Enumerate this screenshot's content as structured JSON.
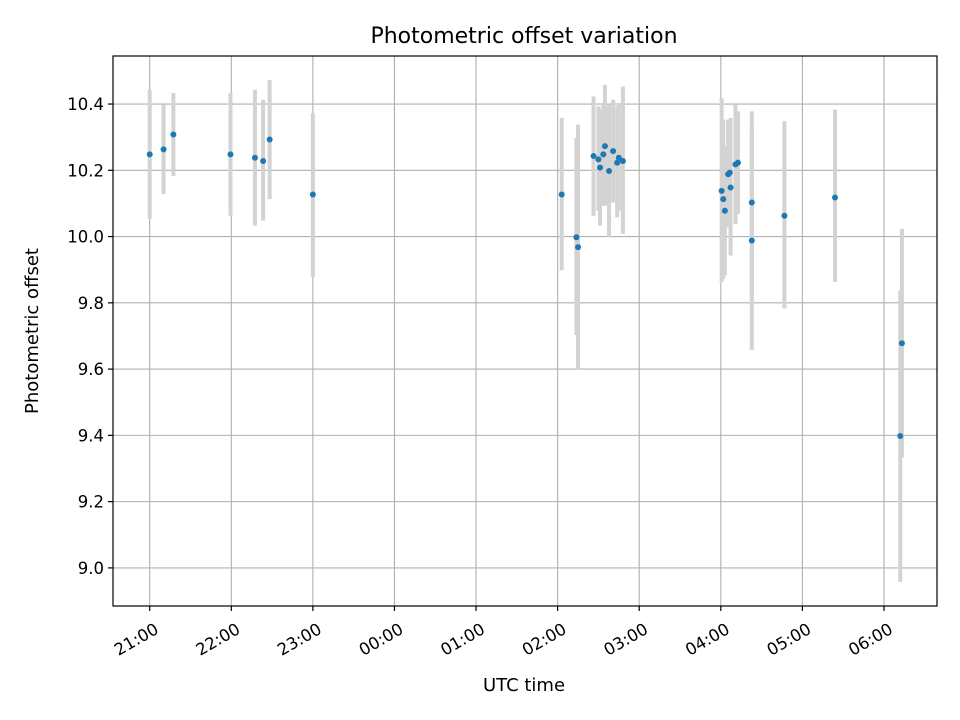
{
  "chart_data": {
    "type": "scatter",
    "title": "Photometric offset variation",
    "xlabel": "UTC time",
    "ylabel": "Photometric offset",
    "x_is_time": true,
    "x_unit": "hours since 21:00 UTC",
    "xlim": [
      -0.45,
      9.65
    ],
    "ylim": [
      8.885,
      10.545
    ],
    "grid": true,
    "x_ticks": [
      {
        "value": 0,
        "label": "21:00"
      },
      {
        "value": 1,
        "label": "22:00"
      },
      {
        "value": 2,
        "label": "23:00"
      },
      {
        "value": 3,
        "label": "00:00"
      },
      {
        "value": 4,
        "label": "01:00"
      },
      {
        "value": 5,
        "label": "02:00"
      },
      {
        "value": 6,
        "label": "03:00"
      },
      {
        "value": 7,
        "label": "04:00"
      },
      {
        "value": 8,
        "label": "05:00"
      },
      {
        "value": 9,
        "label": "06:00"
      }
    ],
    "y_ticks": [
      {
        "value": 9.0,
        "label": "9.0"
      },
      {
        "value": 9.2,
        "label": "9.2"
      },
      {
        "value": 9.4,
        "label": "9.4"
      },
      {
        "value": 9.6,
        "label": "9.6"
      },
      {
        "value": 9.8,
        "label": "9.8"
      },
      {
        "value": 10.0,
        "label": "10.0"
      },
      {
        "value": 10.2,
        "label": "10.2"
      },
      {
        "value": 10.4,
        "label": "10.4"
      }
    ],
    "points_color": "#1f77b4",
    "errorbar_color": "#d3d3d3",
    "points": [
      {
        "x": 0.0,
        "y": 10.248,
        "lo": 10.053,
        "hi": 10.443
      },
      {
        "x": 0.17,
        "y": 10.263,
        "lo": 10.128,
        "hi": 10.398
      },
      {
        "x": 0.29,
        "y": 10.308,
        "lo": 10.183,
        "hi": 10.433
      },
      {
        "x": 0.99,
        "y": 10.248,
        "lo": 10.063,
        "hi": 10.433
      },
      {
        "x": 1.29,
        "y": 10.238,
        "lo": 10.033,
        "hi": 10.443
      },
      {
        "x": 1.39,
        "y": 10.228,
        "lo": 10.048,
        "hi": 10.413
      },
      {
        "x": 1.47,
        "y": 10.293,
        "lo": 10.113,
        "hi": 10.473
      },
      {
        "x": 2.0,
        "y": 10.127,
        "lo": 9.878,
        "hi": 10.373
      },
      {
        "x": 5.05,
        "y": 10.127,
        "lo": 9.898,
        "hi": 10.358
      },
      {
        "x": 5.23,
        "y": 9.998,
        "lo": 9.703,
        "hi": 10.298
      },
      {
        "x": 5.25,
        "y": 9.968,
        "lo": 9.598,
        "hi": 10.338
      },
      {
        "x": 5.44,
        "y": 10.243,
        "lo": 10.063,
        "hi": 10.423
      },
      {
        "x": 5.5,
        "y": 10.233,
        "lo": 10.078,
        "hi": 10.393
      },
      {
        "x": 5.52,
        "y": 10.208,
        "lo": 10.033,
        "hi": 10.383
      },
      {
        "x": 5.56,
        "y": 10.248,
        "lo": 10.093,
        "hi": 10.403
      },
      {
        "x": 5.58,
        "y": 10.273,
        "lo": 10.093,
        "hi": 10.458
      },
      {
        "x": 5.63,
        "y": 10.198,
        "lo": 9.998,
        "hi": 10.398
      },
      {
        "x": 5.68,
        "y": 10.258,
        "lo": 10.103,
        "hi": 10.413
      },
      {
        "x": 5.73,
        "y": 10.223,
        "lo": 10.058,
        "hi": 10.393
      },
      {
        "x": 5.75,
        "y": 10.238,
        "lo": 10.078,
        "hi": 10.403
      },
      {
        "x": 5.8,
        "y": 10.228,
        "lo": 10.008,
        "hi": 10.453
      },
      {
        "x": 7.01,
        "y": 10.138,
        "lo": 9.863,
        "hi": 10.418
      },
      {
        "x": 7.03,
        "y": 10.113,
        "lo": 9.873,
        "hi": 10.353
      },
      {
        "x": 7.05,
        "y": 10.078,
        "lo": 9.883,
        "hi": 10.273
      },
      {
        "x": 7.09,
        "y": 10.188,
        "lo": 10.028,
        "hi": 10.353
      },
      {
        "x": 7.11,
        "y": 10.193,
        "lo": 10.053,
        "hi": 10.333
      },
      {
        "x": 7.12,
        "y": 10.148,
        "lo": 9.943,
        "hi": 10.358
      },
      {
        "x": 7.18,
        "y": 10.218,
        "lo": 10.038,
        "hi": 10.398
      },
      {
        "x": 7.21,
        "y": 10.223,
        "lo": 10.068,
        "hi": 10.378
      },
      {
        "x": 7.38,
        "y": 10.103,
        "lo": 9.823,
        "hi": 10.378
      },
      {
        "x": 7.38,
        "y": 9.988,
        "lo": 9.658,
        "hi": 10.318
      },
      {
        "x": 7.78,
        "y": 10.063,
        "lo": 9.783,
        "hi": 10.348
      },
      {
        "x": 8.4,
        "y": 10.118,
        "lo": 9.863,
        "hi": 10.383
      },
      {
        "x": 9.2,
        "y": 9.398,
        "lo": 8.958,
        "hi": 9.838
      },
      {
        "x": 9.22,
        "y": 9.678,
        "lo": 9.333,
        "hi": 10.023
      }
    ]
  }
}
